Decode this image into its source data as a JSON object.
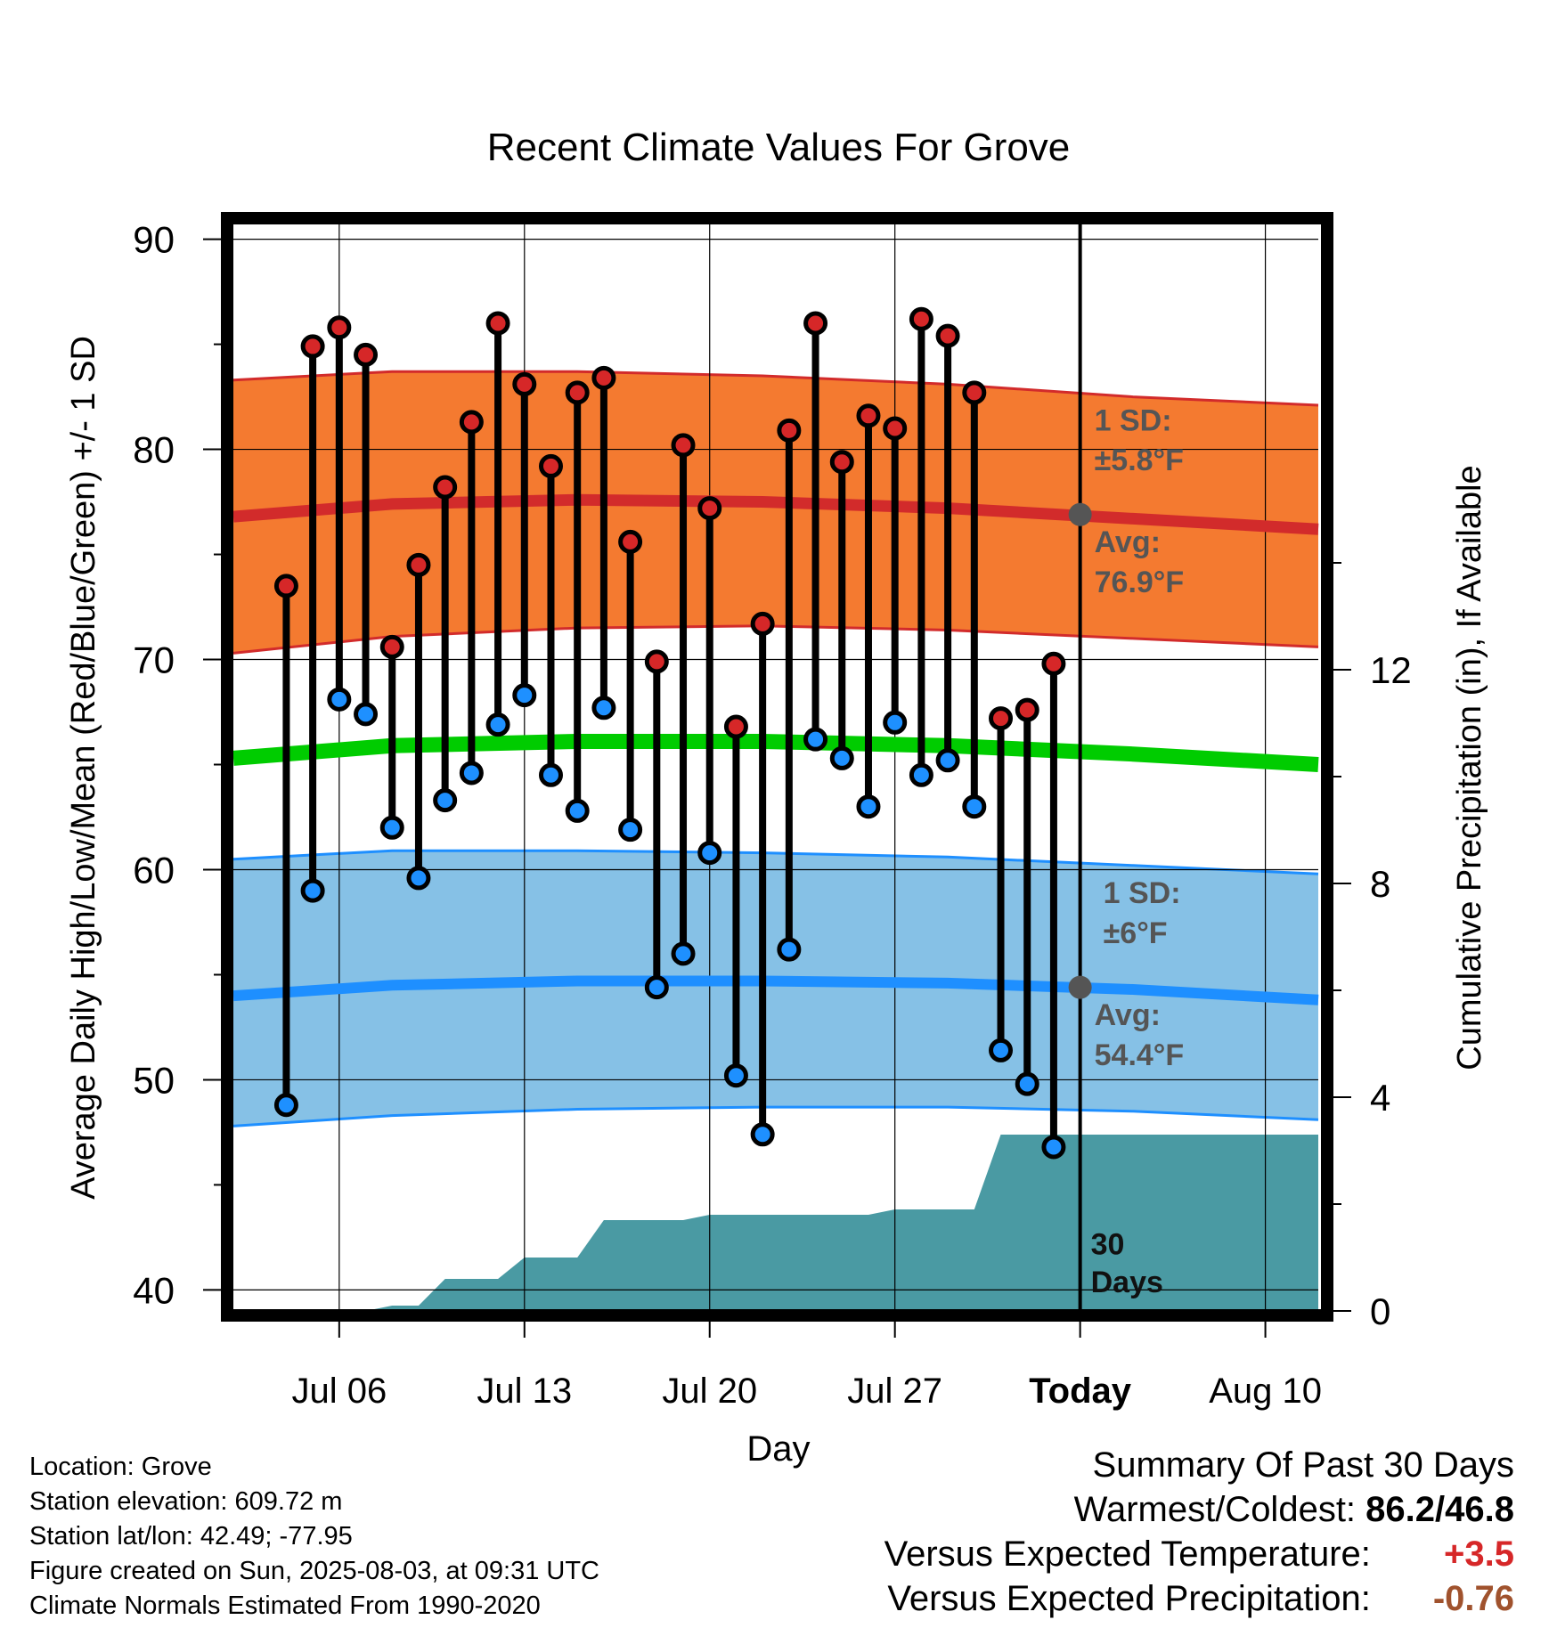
{
  "chart_data": {
    "type": "line",
    "title": "Recent Climate Values For Grove",
    "xlabel": "Day",
    "ylabel": "Average Daily High/Low/Mean (Red/Blue/Green) +/- 1 SD",
    "y2label": "Cumulative Precipitation (in), If Available",
    "ylim": [
      39,
      91
    ],
    "y2lim": [
      0,
      20
    ],
    "y_ticks": [
      "40",
      "50",
      "60",
      "70",
      "80",
      "90"
    ],
    "y2_ticks": [
      "0",
      "4",
      "8",
      "12"
    ],
    "x_ticks": [
      "Jul 06",
      "Jul 13",
      "Jul 20",
      "Jul 27",
      "Today",
      "Aug 10"
    ],
    "x_range": [
      "2025-07-02",
      "2025-08-12"
    ],
    "x_tick_dates": [
      "2025-07-06",
      "2025-07-13",
      "2025-07-20",
      "2025-07-27",
      "2025-08-03",
      "2025-08-10"
    ],
    "today": "2025-08-03",
    "dates": [
      "2025-07-04",
      "2025-07-05",
      "2025-07-06",
      "2025-07-07",
      "2025-07-08",
      "2025-07-09",
      "2025-07-10",
      "2025-07-11",
      "2025-07-12",
      "2025-07-13",
      "2025-07-14",
      "2025-07-15",
      "2025-07-16",
      "2025-07-17",
      "2025-07-18",
      "2025-07-19",
      "2025-07-20",
      "2025-07-21",
      "2025-07-22",
      "2025-07-23",
      "2025-07-24",
      "2025-07-25",
      "2025-07-26",
      "2025-07-27",
      "2025-07-28",
      "2025-07-29",
      "2025-07-30",
      "2025-07-31",
      "2025-08-01",
      "2025-08-02"
    ],
    "daily_high": [
      73.5,
      84.9,
      85.8,
      84.5,
      70.6,
      74.5,
      78.2,
      81.3,
      86.0,
      83.1,
      79.2,
      82.7,
      83.4,
      75.6,
      69.9,
      80.2,
      77.2,
      66.8,
      71.7,
      80.9,
      86.0,
      79.4,
      81.6,
      81.0,
      86.2,
      85.4,
      82.7,
      67.2,
      67.6,
      69.8
    ],
    "daily_low": [
      48.8,
      59.0,
      68.1,
      67.4,
      62.0,
      59.6,
      63.3,
      64.6,
      66.9,
      68.3,
      64.5,
      62.8,
      67.7,
      61.9,
      54.4,
      56.0,
      60.8,
      50.2,
      47.4,
      56.2,
      66.2,
      65.3,
      63.0,
      67.0,
      64.5,
      65.2,
      63.0,
      51.4,
      49.8,
      46.8
    ],
    "normal_dates": [
      "2025-07-02",
      "2025-07-08",
      "2025-07-15",
      "2025-07-22",
      "2025-07-29",
      "2025-08-05",
      "2025-08-12"
    ],
    "normal_high": [
      76.8,
      77.4,
      77.6,
      77.5,
      77.2,
      76.7,
      76.2
    ],
    "normal_high_upper": [
      83.3,
      83.7,
      83.7,
      83.5,
      83.1,
      82.5,
      82.1
    ],
    "normal_high_lower": [
      70.3,
      71.1,
      71.5,
      71.6,
      71.4,
      71.0,
      70.6
    ],
    "normal_mean": [
      65.3,
      65.9,
      66.1,
      66.1,
      65.9,
      65.5,
      65.0
    ],
    "normal_low": [
      54.0,
      54.5,
      54.7,
      54.7,
      54.6,
      54.3,
      53.8
    ],
    "normal_low_upper": [
      60.5,
      60.9,
      60.9,
      60.8,
      60.6,
      60.2,
      59.8
    ],
    "normal_low_lower": [
      47.8,
      48.3,
      48.6,
      48.7,
      48.7,
      48.5,
      48.1
    ],
    "precip_dates": [
      "2025-07-02",
      "2025-07-07",
      "2025-07-08",
      "2025-07-09",
      "2025-07-10",
      "2025-07-11",
      "2025-07-12",
      "2025-07-13",
      "2025-07-14",
      "2025-07-15",
      "2025-07-16",
      "2025-07-17",
      "2025-07-18",
      "2025-07-19",
      "2025-07-20",
      "2025-07-21",
      "2025-07-22",
      "2025-07-23",
      "2025-07-24",
      "2025-07-25",
      "2025-07-26",
      "2025-07-27",
      "2025-07-28",
      "2025-07-29",
      "2025-07-30",
      "2025-07-31",
      "2025-08-01",
      "2025-08-12"
    ],
    "precip_cumulative": [
      0,
      0,
      0.1,
      0.1,
      0.6,
      0.6,
      0.6,
      1.0,
      1.0,
      1.0,
      1.7,
      1.7,
      1.7,
      1.7,
      1.8,
      1.8,
      1.8,
      1.8,
      1.8,
      1.8,
      1.8,
      1.9,
      1.9,
      1.9,
      1.9,
      3.3,
      3.3,
      3.3
    ],
    "annotations": {
      "high_sd": "1 SD:",
      "high_sd_val": "±5.8°F",
      "high_avg": "Avg:",
      "high_avg_val": "76.9°F",
      "low_sd": "1 SD:",
      "low_sd_val": "±6°F",
      "low_avg": "Avg:",
      "low_avg_val": "54.4°F",
      "days_num": "30",
      "days_word": "Days"
    },
    "today_high_avg": 76.9,
    "today_low_avg": 54.4,
    "grid": true,
    "colors": {
      "high_band": "#f47a30",
      "high_line": "#d22b2b",
      "low_band": "#86c1e6",
      "low_line": "#1e8fff",
      "mean_line": "#00cc00",
      "precip": "#4a9aa3",
      "high_dot": "#d62728",
      "low_dot": "#1e90ff",
      "annot": "#555555"
    }
  },
  "info": {
    "location": "Location: Grove",
    "elevation": "Station elevation: 609.72 m",
    "latlon": "Station lat/lon: 42.49; -77.95",
    "created": "Figure created on Sun, 2025-08-03, at 09:31 UTC",
    "normals": "Climate Normals Estimated From 1990-2020"
  },
  "summary": {
    "heading": "Summary Of Past 30 Days",
    "warm_cold_label": "Warmest/Coldest:",
    "warm_cold_value": "86.2/46.8",
    "temp_label": "Versus Expected Temperature:",
    "temp_value": "+3.5",
    "precip_label": "Versus Expected Precipitation:",
    "precip_value": "-0.76"
  }
}
